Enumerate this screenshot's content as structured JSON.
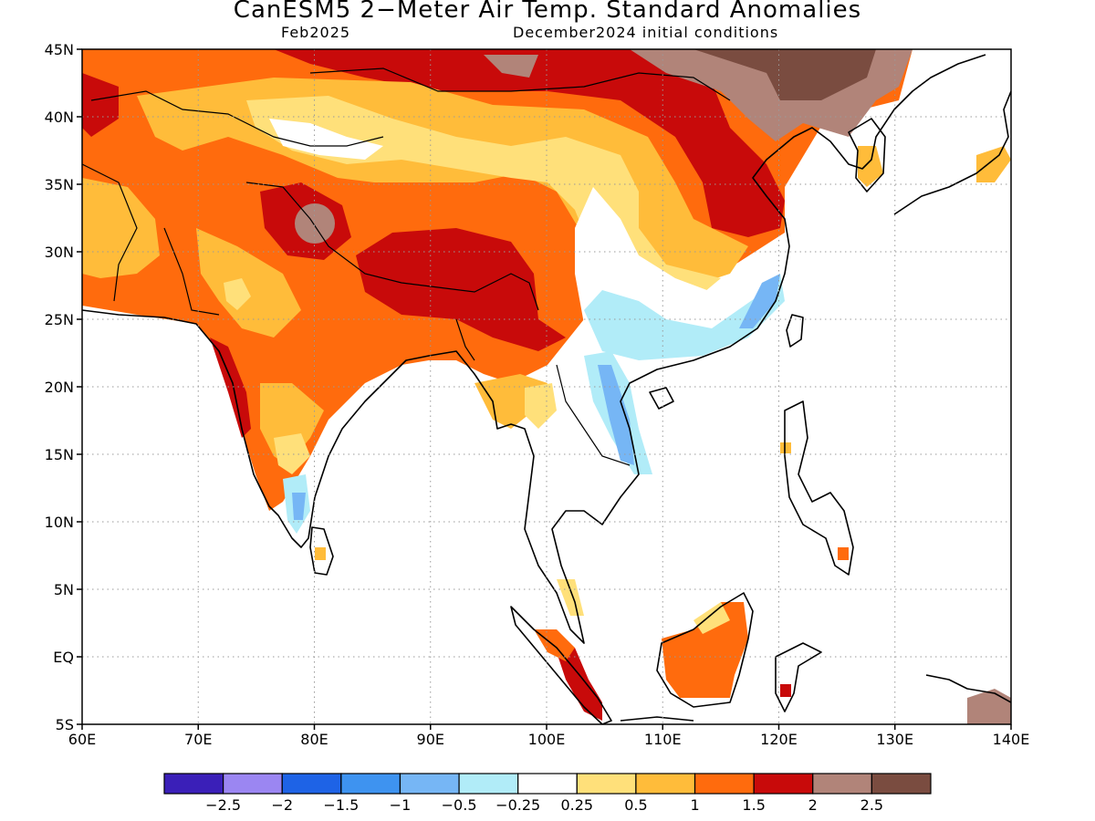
{
  "title": "CanESM5 2−Meter Air Temp. Standard Anomalies",
  "valid_month": "Feb2025",
  "init_conditions": "December2024 initial conditions",
  "map": {
    "lon_range": [
      60,
      140
    ],
    "lat_range": [
      -5,
      45
    ],
    "lon_ticks": [
      {
        "v": 60,
        "label": "60E"
      },
      {
        "v": 70,
        "label": "70E"
      },
      {
        "v": 80,
        "label": "80E"
      },
      {
        "v": 90,
        "label": "90E"
      },
      {
        "v": 100,
        "label": "100E"
      },
      {
        "v": 110,
        "label": "110E"
      },
      {
        "v": 120,
        "label": "120E"
      },
      {
        "v": 130,
        "label": "130E"
      },
      {
        "v": 140,
        "label": "140E"
      }
    ],
    "lat_ticks": [
      {
        "v": 45,
        "label": "45N"
      },
      {
        "v": 40,
        "label": "40N"
      },
      {
        "v": 35,
        "label": "35N"
      },
      {
        "v": 30,
        "label": "30N"
      },
      {
        "v": 25,
        "label": "25N"
      },
      {
        "v": 20,
        "label": "20N"
      },
      {
        "v": 15,
        "label": "15N"
      },
      {
        "v": 10,
        "label": "10N"
      },
      {
        "v": 5,
        "label": "5N"
      },
      {
        "v": 0,
        "label": "EQ"
      },
      {
        "v": -5,
        "label": "5S"
      }
    ],
    "grid": true
  },
  "colorbar": {
    "colors": [
      "#3a1fb8",
      "#9b86f2",
      "#1e63e6",
      "#3e93f0",
      "#76b6f5",
      "#b1ecf8",
      "#ffffff",
      "#ffe07a",
      "#ffbc3a",
      "#ff6b0d",
      "#c80a0a",
      "#b18479",
      "#7a4c40"
    ],
    "labels": [
      "−2.5",
      "−2",
      "−1.5",
      "−1",
      "−0.5",
      "−0.25",
      "0.25",
      "0.5",
      "1",
      "1.5",
      "2",
      "2.5"
    ]
  }
}
